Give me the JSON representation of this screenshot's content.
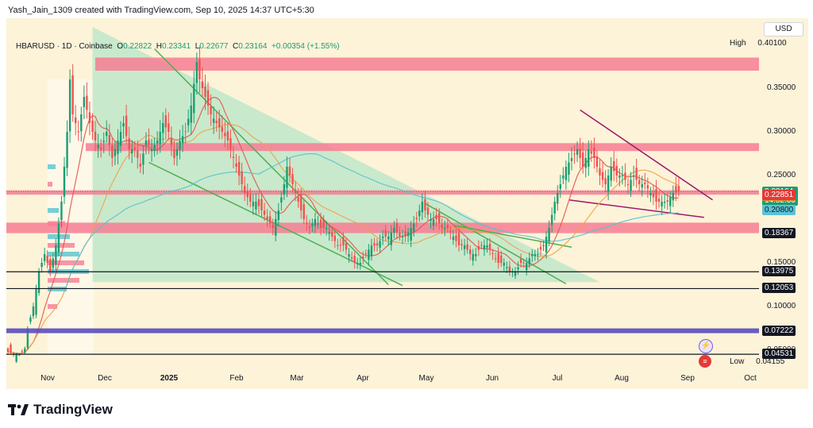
{
  "header": {
    "attribution": "Yash_Jain_1309 created with TradingView.com, Sep 10, 2025 14:37 UTC+5:30"
  },
  "legend": {
    "symbol": "HBARUSD · 1D · Coinbase",
    "o_label": "O",
    "o_value": "0.22822",
    "h_label": "H",
    "h_value": "0.23341",
    "l_label": "L",
    "l_value": "0.22677",
    "c_label": "C",
    "c_value": "0.23164",
    "change": "+0.00354 (+1.55%)"
  },
  "currency": "USD",
  "brand": "TradingView",
  "colors": {
    "up": "#1a9e73",
    "down": "#ef5350",
    "zone": "#f77c93",
    "triangle": "#9fe0c2",
    "trend": "#4caf50",
    "wedge": "#9c1b6f",
    "ma_red": "#e0564c",
    "ma_orange": "#f0a24a",
    "ma_teal": "#57c3cf",
    "support_purple": "#5a4bbf"
  },
  "chart_data": {
    "type": "candlestick",
    "symbol": "HBARUSD",
    "timeframe": "1D",
    "exchange": "Coinbase",
    "ylim": [
      0.03,
      0.43
    ],
    "y_ticks": [
      "0.35000",
      "0.30000",
      "0.25000",
      "0.15000",
      "0.10000",
      "0.05000"
    ],
    "x_ticks": [
      "Nov",
      "Dec",
      "2025",
      "Feb",
      "Mar",
      "Apr",
      "May",
      "Jun",
      "Jul",
      "Aug",
      "Sep",
      "Oct"
    ],
    "high_label": "High",
    "high_value": "0.40100",
    "low_label": "Low",
    "low_value": "0.04155",
    "last_price": "0.23164",
    "countdown": "14:52:33",
    "price_labels": [
      {
        "value": "0.23075",
        "kind": "orange"
      },
      {
        "value": "0.22851",
        "kind": "red"
      },
      {
        "value": "0.20800",
        "kind": "teal"
      },
      {
        "value": "0.18367",
        "kind": "black"
      },
      {
        "value": "0.13975",
        "kind": "black"
      },
      {
        "value": "0.12053",
        "kind": "black"
      },
      {
        "value": "0.07222",
        "kind": "black"
      },
      {
        "value": "0.04531",
        "kind": "black"
      }
    ],
    "resistance_zones": [
      {
        "low": 0.37,
        "high": 0.385
      },
      {
        "low": 0.278,
        "high": 0.287
      },
      {
        "low": 0.228,
        "high": 0.233
      },
      {
        "low": 0.184,
        "high": 0.196
      }
    ],
    "support_lines": [
      0.13975,
      0.12053,
      0.04531
    ],
    "support_band": 0.07222,
    "price_path": [
      [
        0,
        0.048
      ],
      [
        2,
        0.046
      ],
      [
        4,
        0.045
      ],
      [
        6,
        0.052
      ],
      [
        7,
        0.075
      ],
      [
        9,
        0.1
      ],
      [
        11,
        0.14
      ],
      [
        13,
        0.16
      ],
      [
        15,
        0.14
      ],
      [
        17,
        0.17
      ],
      [
        19,
        0.22
      ],
      [
        21,
        0.3
      ],
      [
        22,
        0.36
      ],
      [
        23,
        0.32
      ],
      [
        25,
        0.3
      ],
      [
        27,
        0.34
      ],
      [
        29,
        0.31
      ],
      [
        31,
        0.29
      ],
      [
        33,
        0.28
      ],
      [
        35,
        0.3
      ],
      [
        37,
        0.27
      ],
      [
        39,
        0.29
      ],
      [
        41,
        0.31
      ],
      [
        43,
        0.28
      ],
      [
        45,
        0.28
      ],
      [
        47,
        0.26
      ],
      [
        49,
        0.29
      ],
      [
        51,
        0.28
      ],
      [
        53,
        0.29
      ],
      [
        55,
        0.31
      ],
      [
        57,
        0.3
      ],
      [
        59,
        0.27
      ],
      [
        61,
        0.29
      ],
      [
        63,
        0.3
      ],
      [
        65,
        0.33
      ],
      [
        67,
        0.38
      ],
      [
        68,
        0.36
      ],
      [
        70,
        0.34
      ],
      [
        72,
        0.32
      ],
      [
        74,
        0.31
      ],
      [
        76,
        0.3
      ],
      [
        78,
        0.29
      ],
      [
        80,
        0.27
      ],
      [
        82,
        0.25
      ],
      [
        84,
        0.23
      ],
      [
        86,
        0.22
      ],
      [
        88,
        0.22
      ],
      [
        90,
        0.21
      ],
      [
        92,
        0.2
      ],
      [
        94,
        0.19
      ],
      [
        96,
        0.21
      ],
      [
        98,
        0.24
      ],
      [
        99,
        0.26
      ],
      [
        101,
        0.24
      ],
      [
        103,
        0.22
      ],
      [
        105,
        0.2
      ],
      [
        107,
        0.19
      ],
      [
        109,
        0.2
      ],
      [
        111,
        0.19
      ],
      [
        113,
        0.19
      ],
      [
        115,
        0.18
      ],
      [
        117,
        0.17
      ],
      [
        119,
        0.17
      ],
      [
        121,
        0.16
      ],
      [
        123,
        0.15
      ],
      [
        125,
        0.15
      ],
      [
        127,
        0.16
      ],
      [
        129,
        0.17
      ],
      [
        131,
        0.17
      ],
      [
        133,
        0.18
      ],
      [
        135,
        0.18
      ],
      [
        137,
        0.19
      ],
      [
        139,
        0.18
      ],
      [
        141,
        0.18
      ],
      [
        143,
        0.19
      ],
      [
        145,
        0.2
      ],
      [
        147,
        0.22
      ],
      [
        148,
        0.21
      ],
      [
        150,
        0.2
      ],
      [
        152,
        0.2
      ],
      [
        154,
        0.19
      ],
      [
        156,
        0.19
      ],
      [
        158,
        0.18
      ],
      [
        160,
        0.17
      ],
      [
        162,
        0.17
      ],
      [
        164,
        0.16
      ],
      [
        166,
        0.16
      ],
      [
        168,
        0.17
      ],
      [
        170,
        0.17
      ],
      [
        172,
        0.16
      ],
      [
        174,
        0.15
      ],
      [
        176,
        0.15
      ],
      [
        178,
        0.14
      ],
      [
        180,
        0.14
      ],
      [
        182,
        0.15
      ],
      [
        184,
        0.15
      ],
      [
        186,
        0.16
      ],
      [
        188,
        0.16
      ],
      [
        190,
        0.17
      ],
      [
        192,
        0.19
      ],
      [
        194,
        0.22
      ],
      [
        196,
        0.24
      ],
      [
        198,
        0.26
      ],
      [
        200,
        0.27
      ],
      [
        202,
        0.28
      ],
      [
        204,
        0.26
      ],
      [
        206,
        0.28
      ],
      [
        208,
        0.27
      ],
      [
        210,
        0.25
      ],
      [
        212,
        0.24
      ],
      [
        214,
        0.26
      ],
      [
        216,
        0.25
      ],
      [
        218,
        0.25
      ],
      [
        220,
        0.24
      ],
      [
        222,
        0.25
      ],
      [
        224,
        0.24
      ],
      [
        226,
        0.24
      ],
      [
        228,
        0.23
      ],
      [
        230,
        0.22
      ],
      [
        232,
        0.22
      ],
      [
        234,
        0.22
      ],
      [
        236,
        0.23
      ],
      [
        238,
        0.232
      ]
    ]
  }
}
